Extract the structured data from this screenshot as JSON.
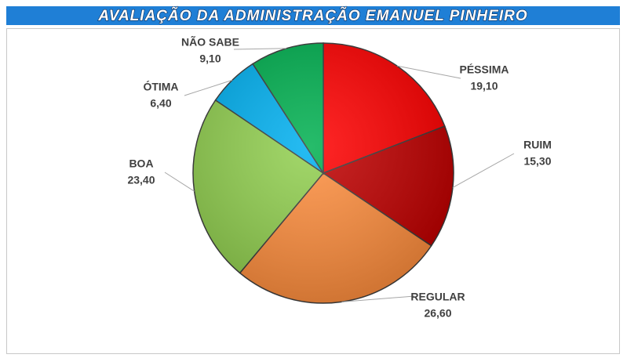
{
  "chart_data": {
    "type": "pie",
    "title": "AVALIAÇÃO DA ADMINISTRAÇÃO  EMANUEL PINHEIRO",
    "categories": [
      "PÉSSIMA",
      "RUIM",
      "REGULAR",
      "BOA",
      "ÓTIMA",
      "NÃO SABE"
    ],
    "values": [
      19.1,
      15.3,
      26.6,
      23.4,
      6.4,
      9.1
    ],
    "value_labels": [
      "19,10",
      "15,30",
      "26,60",
      "23,40",
      "6,40",
      "9,10"
    ],
    "colors": [
      "#ff0000",
      "#c00000",
      "#ff8f3f",
      "#92d050",
      "#00b0f0",
      "#00b050"
    ]
  }
}
